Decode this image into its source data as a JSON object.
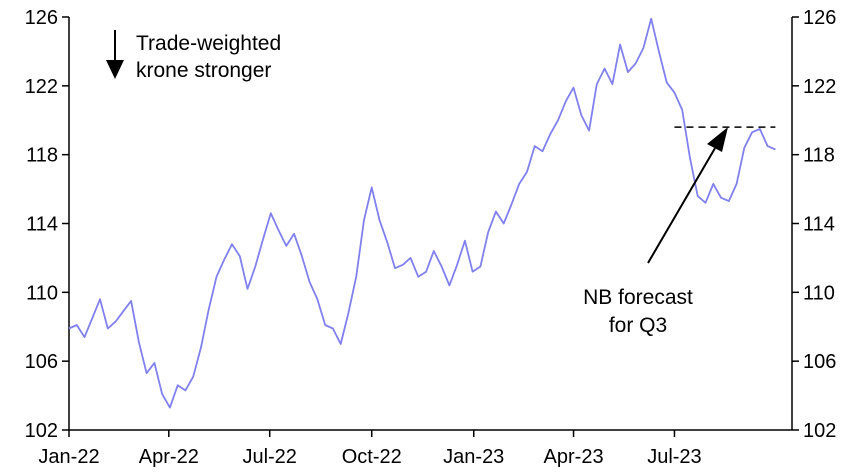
{
  "chart_data": {
    "type": "line",
    "title": "",
    "xlabel": "",
    "ylabel": "",
    "ylim": [
      102,
      126
    ],
    "y_ticks": [
      102,
      106,
      110,
      114,
      118,
      122,
      126
    ],
    "y_tick_labels": [
      "102",
      "106",
      "110",
      "114",
      "118",
      "122",
      "126"
    ],
    "x_range": [
      "2022-01-01",
      "2023-10-15"
    ],
    "x_ticks": [
      "2022-01-01",
      "2022-04-01",
      "2022-07-01",
      "2022-10-01",
      "2023-01-01",
      "2023-04-01",
      "2023-07-01"
    ],
    "x_tick_labels": [
      "Jan-22",
      "Apr-22",
      "Jul-22",
      "Oct-22",
      "Jan-23",
      "Apr-23",
      "Jul-23"
    ],
    "grid": false,
    "legend": "none",
    "dual_y_axis": true,
    "line_color": "#8080ee",
    "series": [
      {
        "x": [
          "2022-01-01",
          "2022-01-08",
          "2022-01-15",
          "2022-01-22",
          "2022-01-29",
          "2022-02-05",
          "2022-02-12",
          "2022-02-19",
          "2022-02-26",
          "2022-03-05",
          "2022-03-12",
          "2022-03-19",
          "2022-03-26",
          "2022-04-02",
          "2022-04-09",
          "2022-04-16",
          "2022-04-23",
          "2022-04-30",
          "2022-05-07",
          "2022-05-14",
          "2022-05-21",
          "2022-05-28",
          "2022-06-04",
          "2022-06-11",
          "2022-06-18",
          "2022-06-25",
          "2022-07-02",
          "2022-07-09",
          "2022-07-16",
          "2022-07-23",
          "2022-07-30",
          "2022-08-06",
          "2022-08-13",
          "2022-08-20",
          "2022-08-27",
          "2022-09-03",
          "2022-09-10",
          "2022-09-17",
          "2022-09-24",
          "2022-10-01",
          "2022-10-08",
          "2022-10-15",
          "2022-10-22",
          "2022-10-29",
          "2022-11-05",
          "2022-11-12",
          "2022-11-19",
          "2022-11-26",
          "2022-12-03",
          "2022-12-10",
          "2022-12-17",
          "2022-12-24",
          "2022-12-31",
          "2023-01-07",
          "2023-01-14",
          "2023-01-21",
          "2023-01-28",
          "2023-02-04",
          "2023-02-11",
          "2023-02-18",
          "2023-02-25",
          "2023-03-04",
          "2023-03-11",
          "2023-03-18",
          "2023-03-25",
          "2023-04-01",
          "2023-04-08",
          "2023-04-15",
          "2023-04-22",
          "2023-04-29",
          "2023-05-06",
          "2023-05-13",
          "2023-05-20",
          "2023-05-27",
          "2023-06-03",
          "2023-06-10",
          "2023-06-17",
          "2023-06-24",
          "2023-07-01",
          "2023-07-08",
          "2023-07-15",
          "2023-07-22",
          "2023-07-29",
          "2023-08-05",
          "2023-08-12",
          "2023-08-19",
          "2023-08-26",
          "2023-09-02",
          "2023-09-09",
          "2023-09-16",
          "2023-09-23",
          "2023-09-30"
        ],
        "values": [
          107.9,
          108.1,
          107.4,
          108.5,
          109.6,
          107.9,
          108.3,
          108.9,
          109.5,
          107.1,
          105.3,
          105.9,
          104.1,
          103.3,
          104.6,
          104.3,
          105.1,
          106.8,
          109.0,
          110.9,
          111.9,
          112.8,
          112.1,
          110.2,
          111.5,
          113.1,
          114.6,
          113.6,
          112.7,
          113.4,
          112.1,
          110.6,
          109.6,
          108.1,
          107.9,
          107.0,
          108.8,
          110.9,
          114.2,
          116.1,
          114.2,
          112.9,
          111.4,
          111.6,
          112.0,
          110.9,
          111.2,
          112.4,
          111.5,
          110.4,
          111.6,
          113.0,
          111.2,
          111.5,
          113.5,
          114.7,
          114.0,
          115.1,
          116.3,
          117.0,
          118.5,
          118.2,
          119.2,
          120.0,
          121.1,
          121.9,
          120.3,
          119.4,
          122.1,
          123.0,
          122.1,
          124.4,
          122.8,
          123.3,
          124.2,
          125.9,
          124.0,
          122.2,
          121.6,
          120.6,
          117.8,
          115.6,
          115.2,
          116.3,
          115.5,
          115.3,
          116.3,
          118.4,
          119.3,
          119.5,
          118.5,
          118.3
        ]
      }
    ],
    "forecast": {
      "label_line1": "NB forecast",
      "label_line2": "for Q3",
      "value": 119.6,
      "from": "2023-07-01",
      "to": "2023-09-30"
    },
    "annotation": {
      "line1": "Trade-weighted",
      "line2": "krone stronger"
    }
  }
}
